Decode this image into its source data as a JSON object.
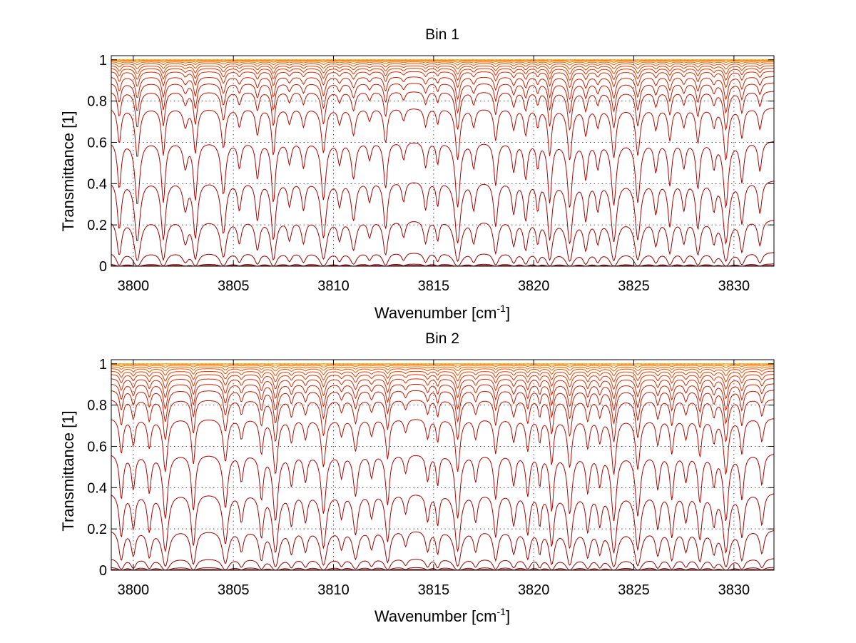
{
  "figure": {
    "background_color": "#ffffff"
  },
  "chart_data": [
    {
      "type": "line",
      "title": "Bin 1",
      "xlabel": "Wavenumber [cm",
      "xlabel_sup": "-1",
      "xlabel_close": "]",
      "ylabel": "Transmittance [1]",
      "xlim": [
        3798.9,
        3832
      ],
      "ylim": [
        0,
        1.02
      ],
      "xticks": [
        3800,
        3805,
        3810,
        3815,
        3820,
        3825,
        3830
      ],
      "xtick_labels": [
        "3800",
        "3805",
        "3810",
        "3815",
        "3820",
        "3825",
        "3830"
      ],
      "yticks": [
        0,
        0.2,
        0.4,
        0.6,
        0.8,
        1
      ],
      "ytick_labels": [
        "0",
        "0.2",
        "0.4",
        "0.6",
        "0.8",
        "1"
      ],
      "grid": true,
      "legend": "none",
      "x_start": 3798.9,
      "x_end": 3832,
      "absorption_lines": [
        {
          "center": 3799.3,
          "depth": 0.6,
          "width": 0.1
        },
        {
          "center": 3800.2,
          "depth": 0.9,
          "width": 0.12
        },
        {
          "center": 3801.5,
          "depth": 0.85,
          "width": 0.1
        },
        {
          "center": 3802.6,
          "depth": 0.3,
          "width": 0.12
        },
        {
          "center": 3803.1,
          "depth": 0.8,
          "width": 0.1
        },
        {
          "center": 3804.5,
          "depth": 0.7,
          "width": 0.12
        },
        {
          "center": 3805.3,
          "depth": 0.3,
          "width": 0.1
        },
        {
          "center": 3806.2,
          "depth": 0.45,
          "width": 0.1
        },
        {
          "center": 3807.0,
          "depth": 0.85,
          "width": 0.1
        },
        {
          "center": 3807.8,
          "depth": 0.25,
          "width": 0.1
        },
        {
          "center": 3808.5,
          "depth": 0.3,
          "width": 0.1
        },
        {
          "center": 3809.5,
          "depth": 0.8,
          "width": 0.12
        },
        {
          "center": 3810.3,
          "depth": 0.25,
          "width": 0.1
        },
        {
          "center": 3811.0,
          "depth": 0.45,
          "width": 0.12
        },
        {
          "center": 3811.8,
          "depth": 0.2,
          "width": 0.1
        },
        {
          "center": 3812.6,
          "depth": 0.6,
          "width": 0.1
        },
        {
          "center": 3813.5,
          "depth": 0.2,
          "width": 0.1
        },
        {
          "center": 3814.6,
          "depth": 0.3,
          "width": 0.1
        },
        {
          "center": 3815.2,
          "depth": 0.25,
          "width": 0.08
        },
        {
          "center": 3816.2,
          "depth": 0.95,
          "width": 0.12
        },
        {
          "center": 3817.0,
          "depth": 0.3,
          "width": 0.1
        },
        {
          "center": 3818.1,
          "depth": 0.55,
          "width": 0.1
        },
        {
          "center": 3819.0,
          "depth": 0.35,
          "width": 0.1
        },
        {
          "center": 3819.6,
          "depth": 0.45,
          "width": 0.1
        },
        {
          "center": 3820.2,
          "depth": 0.3,
          "width": 0.08
        },
        {
          "center": 3820.8,
          "depth": 0.85,
          "width": 0.1
        },
        {
          "center": 3821.8,
          "depth": 0.95,
          "width": 0.12
        },
        {
          "center": 3822.6,
          "depth": 0.45,
          "width": 0.1
        },
        {
          "center": 3823.2,
          "depth": 0.3,
          "width": 0.1
        },
        {
          "center": 3824.0,
          "depth": 0.9,
          "width": 0.12
        },
        {
          "center": 3825.2,
          "depth": 0.85,
          "width": 0.12
        },
        {
          "center": 3826.1,
          "depth": 0.35,
          "width": 0.1
        },
        {
          "center": 3826.8,
          "depth": 0.55,
          "width": 0.1
        },
        {
          "center": 3827.5,
          "depth": 0.3,
          "width": 0.1
        },
        {
          "center": 3828.2,
          "depth": 0.6,
          "width": 0.1
        },
        {
          "center": 3829.0,
          "depth": 0.3,
          "width": 0.1
        },
        {
          "center": 3829.6,
          "depth": 0.95,
          "width": 0.12
        },
        {
          "center": 3830.4,
          "depth": 0.5,
          "width": 0.1
        },
        {
          "center": 3831.3,
          "depth": 0.35,
          "width": 0.1
        }
      ],
      "series": [
        {
          "baseline": 0.005,
          "color": "#7a0000"
        },
        {
          "baseline": 0.012,
          "color": "#8a0000"
        },
        {
          "baseline": 0.07,
          "color": "#960000"
        },
        {
          "baseline": 0.23,
          "color": "#a00000"
        },
        {
          "baseline": 0.42,
          "color": "#a80000"
        },
        {
          "baseline": 0.61,
          "color": "#b00000"
        },
        {
          "baseline": 0.77,
          "color": "#b80800"
        },
        {
          "baseline": 0.85,
          "color": "#c01000"
        },
        {
          "baseline": 0.89,
          "color": "#c81800"
        },
        {
          "baseline": 0.92,
          "color": "#d02000"
        },
        {
          "baseline": 0.945,
          "color": "#d82a00"
        },
        {
          "baseline": 0.96,
          "color": "#e03400"
        },
        {
          "baseline": 0.972,
          "color": "#e84000"
        },
        {
          "baseline": 0.982,
          "color": "#ee5000"
        },
        {
          "baseline": 0.99,
          "color": "#f46200"
        },
        {
          "baseline": 0.995,
          "color": "#f87600"
        },
        {
          "baseline": 0.998,
          "color": "#fc8a00"
        },
        {
          "baseline": 1.0,
          "color": "#ffa000"
        }
      ]
    },
    {
      "type": "line",
      "title": "Bin 2",
      "xlabel": "Wavenumber [cm",
      "xlabel_sup": "-1",
      "xlabel_close": "]",
      "ylabel": "Transmittance [1]",
      "xlim": [
        3798.9,
        3832
      ],
      "ylim": [
        0,
        1.02
      ],
      "xticks": [
        3800,
        3805,
        3810,
        3815,
        3820,
        3825,
        3830
      ],
      "xtick_labels": [
        "3800",
        "3805",
        "3810",
        "3815",
        "3820",
        "3825",
        "3830"
      ],
      "yticks": [
        0,
        0.2,
        0.4,
        0.6,
        0.8,
        1
      ],
      "ytick_labels": [
        "0",
        "0.2",
        "0.4",
        "0.6",
        "0.8",
        "1"
      ],
      "grid": true,
      "legend": "none",
      "x_start": 3798.9,
      "x_end": 3832,
      "absorption_lines": [
        {
          "center": 3799.4,
          "depth": 0.55,
          "width": 0.1
        },
        {
          "center": 3800.0,
          "depth": 0.4,
          "width": 0.1
        },
        {
          "center": 3800.8,
          "depth": 0.45,
          "width": 0.1
        },
        {
          "center": 3801.6,
          "depth": 0.9,
          "width": 0.12
        },
        {
          "center": 3803.0,
          "depth": 0.75,
          "width": 0.1
        },
        {
          "center": 3804.6,
          "depth": 0.7,
          "width": 0.12
        },
        {
          "center": 3805.4,
          "depth": 0.3,
          "width": 0.1
        },
        {
          "center": 3806.4,
          "depth": 0.55,
          "width": 0.1
        },
        {
          "center": 3807.1,
          "depth": 0.95,
          "width": 0.12
        },
        {
          "center": 3807.9,
          "depth": 0.35,
          "width": 0.1
        },
        {
          "center": 3808.6,
          "depth": 0.3,
          "width": 0.1
        },
        {
          "center": 3809.5,
          "depth": 0.8,
          "width": 0.12
        },
        {
          "center": 3810.4,
          "depth": 0.25,
          "width": 0.1
        },
        {
          "center": 3811.1,
          "depth": 0.5,
          "width": 0.12
        },
        {
          "center": 3811.9,
          "depth": 0.25,
          "width": 0.1
        },
        {
          "center": 3812.7,
          "depth": 0.65,
          "width": 0.1
        },
        {
          "center": 3813.6,
          "depth": 0.2,
          "width": 0.1
        },
        {
          "center": 3814.7,
          "depth": 0.3,
          "width": 0.1
        },
        {
          "center": 3815.2,
          "depth": 0.35,
          "width": 0.08
        },
        {
          "center": 3816.2,
          "depth": 0.9,
          "width": 0.12
        },
        {
          "center": 3817.1,
          "depth": 0.3,
          "width": 0.1
        },
        {
          "center": 3818.1,
          "depth": 0.55,
          "width": 0.1
        },
        {
          "center": 3819.0,
          "depth": 0.35,
          "width": 0.1
        },
        {
          "center": 3819.7,
          "depth": 0.5,
          "width": 0.1
        },
        {
          "center": 3820.3,
          "depth": 0.35,
          "width": 0.08
        },
        {
          "center": 3820.9,
          "depth": 0.75,
          "width": 0.1
        },
        {
          "center": 3821.8,
          "depth": 0.8,
          "width": 0.12
        },
        {
          "center": 3822.7,
          "depth": 0.45,
          "width": 0.1
        },
        {
          "center": 3823.3,
          "depth": 0.35,
          "width": 0.1
        },
        {
          "center": 3824.0,
          "depth": 0.95,
          "width": 0.12
        },
        {
          "center": 3825.2,
          "depth": 0.85,
          "width": 0.12
        },
        {
          "center": 3826.2,
          "depth": 0.4,
          "width": 0.1
        },
        {
          "center": 3826.9,
          "depth": 0.55,
          "width": 0.1
        },
        {
          "center": 3827.6,
          "depth": 0.3,
          "width": 0.1
        },
        {
          "center": 3828.3,
          "depth": 0.6,
          "width": 0.1
        },
        {
          "center": 3829.0,
          "depth": 0.35,
          "width": 0.1
        },
        {
          "center": 3829.6,
          "depth": 0.95,
          "width": 0.12
        },
        {
          "center": 3830.4,
          "depth": 0.55,
          "width": 0.1
        },
        {
          "center": 3831.4,
          "depth": 0.35,
          "width": 0.1
        }
      ],
      "series": [
        {
          "baseline": 0.005,
          "color": "#7a0000"
        },
        {
          "baseline": 0.015,
          "color": "#8a0000"
        },
        {
          "baseline": 0.06,
          "color": "#960000"
        },
        {
          "baseline": 0.2,
          "color": "#a00000"
        },
        {
          "baseline": 0.38,
          "color": "#a80000"
        },
        {
          "baseline": 0.57,
          "color": "#b00000"
        },
        {
          "baseline": 0.74,
          "color": "#b80800"
        },
        {
          "baseline": 0.83,
          "color": "#c01000"
        },
        {
          "baseline": 0.875,
          "color": "#c81800"
        },
        {
          "baseline": 0.905,
          "color": "#d02000"
        },
        {
          "baseline": 0.93,
          "color": "#d82a00"
        },
        {
          "baseline": 0.95,
          "color": "#e03400"
        },
        {
          "baseline": 0.965,
          "color": "#e84000"
        },
        {
          "baseline": 0.977,
          "color": "#ee5000"
        },
        {
          "baseline": 0.986,
          "color": "#f46200"
        },
        {
          "baseline": 0.993,
          "color": "#f87600"
        },
        {
          "baseline": 0.997,
          "color": "#fc8a00"
        },
        {
          "baseline": 1.0,
          "color": "#ffa000"
        }
      ]
    }
  ]
}
